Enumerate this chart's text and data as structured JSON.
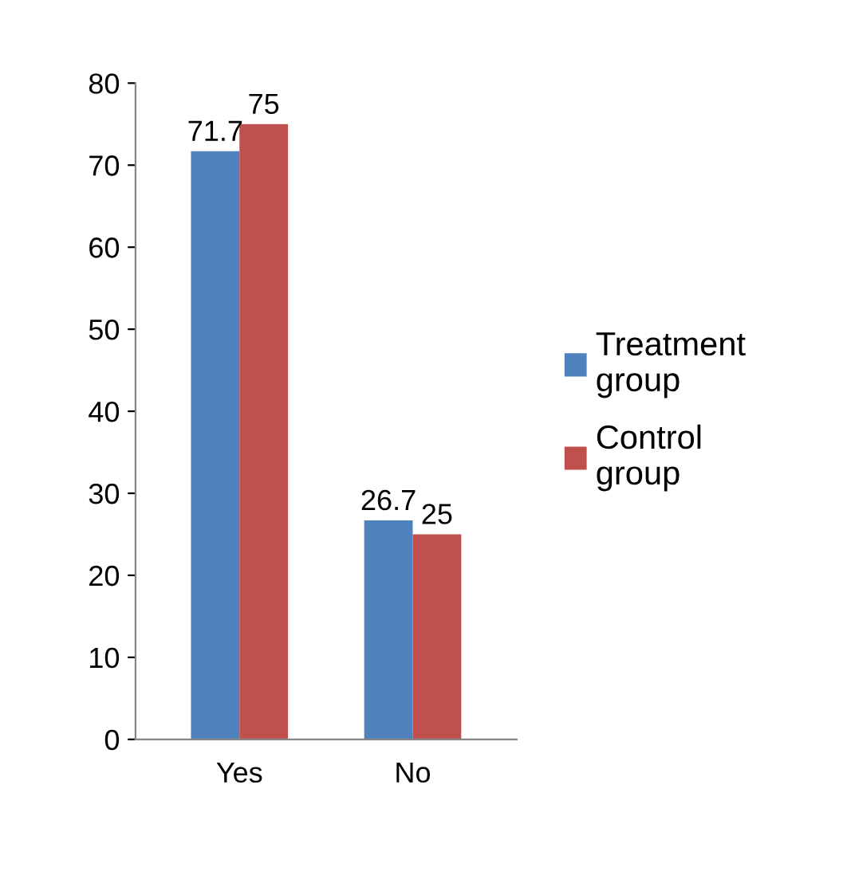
{
  "chart_data": {
    "type": "bar",
    "categories": [
      "Yes",
      "No"
    ],
    "series": [
      {
        "name": "Treatment group",
        "color": "#4f81bd",
        "values": [
          71.7,
          26.7
        ]
      },
      {
        "name": "Control group",
        "color": "#c0504d",
        "values": [
          75,
          25
        ]
      }
    ],
    "ylim": [
      0,
      80
    ],
    "yticks": [
      0,
      10,
      20,
      30,
      40,
      50,
      60,
      70,
      80
    ],
    "grid": false,
    "legend": "right",
    "data_labels": true
  }
}
